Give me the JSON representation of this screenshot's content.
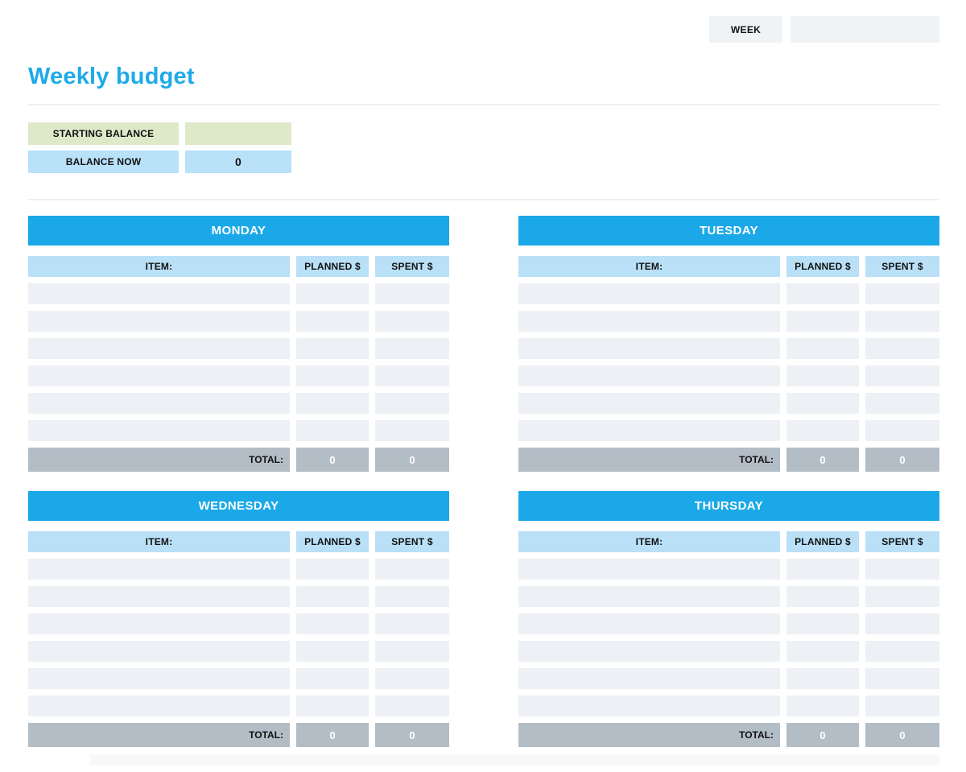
{
  "meta": {
    "week_label": "WEEK",
    "week_value": ""
  },
  "header": {
    "title": "Weekly budget"
  },
  "balance": {
    "starting": {
      "label": "STARTING BALANCE",
      "value": ""
    },
    "now": {
      "label": "BALANCE NOW",
      "value": "0"
    }
  },
  "columns": {
    "item": "ITEM:",
    "planned": "PLANNED $",
    "spent": "SPENT $"
  },
  "total_label": "TOTAL:",
  "days": [
    {
      "name": "MONDAY",
      "rows": [
        {
          "item": "",
          "planned": "",
          "spent": ""
        },
        {
          "item": "",
          "planned": "",
          "spent": ""
        },
        {
          "item": "",
          "planned": "",
          "spent": ""
        },
        {
          "item": "",
          "planned": "",
          "spent": ""
        },
        {
          "item": "",
          "planned": "",
          "spent": ""
        },
        {
          "item": "",
          "planned": "",
          "spent": ""
        }
      ],
      "totals": {
        "planned": "0",
        "spent": "0"
      }
    },
    {
      "name": "TUESDAY",
      "rows": [
        {
          "item": "",
          "planned": "",
          "spent": ""
        },
        {
          "item": "",
          "planned": "",
          "spent": ""
        },
        {
          "item": "",
          "planned": "",
          "spent": ""
        },
        {
          "item": "",
          "planned": "",
          "spent": ""
        },
        {
          "item": "",
          "planned": "",
          "spent": ""
        },
        {
          "item": "",
          "planned": "",
          "spent": ""
        }
      ],
      "totals": {
        "planned": "0",
        "spent": "0"
      }
    },
    {
      "name": "WEDNESDAY",
      "rows": [
        {
          "item": "",
          "planned": "",
          "spent": ""
        },
        {
          "item": "",
          "planned": "",
          "spent": ""
        },
        {
          "item": "",
          "planned": "",
          "spent": ""
        },
        {
          "item": "",
          "planned": "",
          "spent": ""
        },
        {
          "item": "",
          "planned": "",
          "spent": ""
        },
        {
          "item": "",
          "planned": "",
          "spent": ""
        }
      ],
      "totals": {
        "planned": "0",
        "spent": "0"
      }
    },
    {
      "name": "THURSDAY",
      "rows": [
        {
          "item": "",
          "planned": "",
          "spent": ""
        },
        {
          "item": "",
          "planned": "",
          "spent": ""
        },
        {
          "item": "",
          "planned": "",
          "spent": ""
        },
        {
          "item": "",
          "planned": "",
          "spent": ""
        },
        {
          "item": "",
          "planned": "",
          "spent": ""
        },
        {
          "item": "",
          "planned": "",
          "spent": ""
        }
      ],
      "totals": {
        "planned": "0",
        "spent": "0"
      }
    }
  ],
  "colors": {
    "title_blue": "#1faae9",
    "day_header_blue": "#1ba8e8",
    "column_header_blue": "#b9e0f7",
    "balance_blue": "#b9e1f8",
    "starting_green": "#dde9c9",
    "row_gray": "#edf1f5",
    "total_gray": "#b3bdc6",
    "week_box_gray": "#f0f3f6"
  }
}
